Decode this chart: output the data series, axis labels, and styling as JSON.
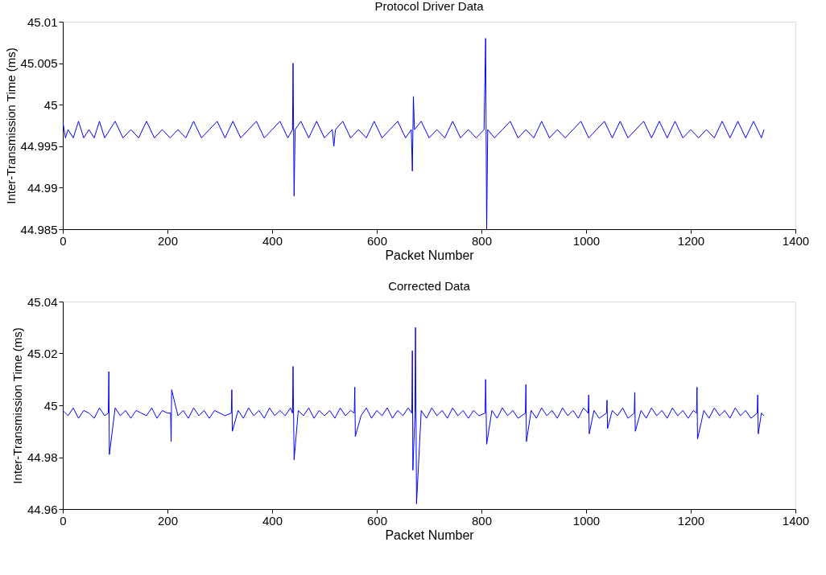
{
  "chart_data": [
    {
      "type": "line",
      "title": "Protocol Driver Data",
      "xlabel": "Packet Number",
      "ylabel": "Inter-Transmission Time (ms)",
      "xlim": [
        0,
        1400
      ],
      "xticks": [
        0,
        200,
        400,
        600,
        800,
        1000,
        1200,
        1400
      ],
      "ylim": [
        44.985,
        45.01
      ],
      "yticks": [
        44.985,
        44.99,
        44.995,
        45,
        45.005,
        45.01
      ],
      "x": [
        0,
        5,
        10,
        20,
        30,
        40,
        50,
        60,
        70,
        80,
        90,
        100,
        115,
        130,
        145,
        160,
        175,
        190,
        205,
        220,
        235,
        250,
        265,
        280,
        295,
        310,
        325,
        340,
        355,
        370,
        385,
        400,
        415,
        430,
        439,
        440,
        442,
        444,
        455,
        470,
        485,
        500,
        515,
        518,
        521,
        535,
        550,
        565,
        580,
        595,
        610,
        625,
        640,
        655,
        666,
        668,
        670,
        672,
        685,
        700,
        715,
        730,
        745,
        760,
        775,
        790,
        805,
        808,
        810,
        812,
        825,
        840,
        855,
        870,
        885,
        900,
        915,
        930,
        945,
        960,
        975,
        990,
        1005,
        1020,
        1035,
        1050,
        1065,
        1080,
        1095,
        1110,
        1125,
        1140,
        1155,
        1170,
        1185,
        1200,
        1215,
        1230,
        1245,
        1260,
        1275,
        1290,
        1305,
        1320,
        1335,
        1340
      ],
      "series": [
        {
          "color": "#0000ff",
          "values": [
            44.998,
            44.996,
            44.997,
            44.996,
            44.998,
            44.996,
            44.997,
            44.996,
            44.998,
            44.996,
            44.997,
            44.998,
            44.996,
            44.997,
            44.996,
            44.998,
            44.996,
            44.997,
            44.996,
            44.997,
            44.996,
            44.998,
            44.996,
            44.997,
            44.998,
            44.996,
            44.998,
            44.996,
            44.997,
            44.998,
            44.996,
            44.997,
            44.998,
            44.996,
            44.997,
            45.005,
            44.989,
            44.997,
            44.998,
            44.996,
            44.998,
            44.996,
            44.997,
            44.995,
            44.997,
            44.998,
            44.996,
            44.997,
            44.996,
            44.998,
            44.996,
            44.997,
            44.998,
            44.996,
            44.997,
            44.992,
            45.001,
            44.997,
            44.998,
            44.996,
            44.997,
            44.996,
            44.998,
            44.996,
            44.997,
            44.996,
            44.997,
            45.008,
            44.985,
            44.997,
            44.996,
            44.997,
            44.998,
            44.996,
            44.997,
            44.996,
            44.998,
            44.996,
            44.997,
            44.996,
            44.997,
            44.998,
            44.996,
            44.997,
            44.998,
            44.996,
            44.998,
            44.996,
            44.997,
            44.998,
            44.996,
            44.998,
            44.996,
            44.998,
            44.996,
            44.997,
            44.996,
            44.997,
            44.996,
            44.998,
            44.996,
            44.998,
            44.996,
            44.998,
            44.996,
            44.997
          ]
        }
      ]
    },
    {
      "type": "line",
      "title": "Corrected Data",
      "xlabel": "Packet Number",
      "ylabel": "Inter-Transmission Time (ms)",
      "xlim": [
        0,
        1400
      ],
      "xticks": [
        0,
        200,
        400,
        600,
        800,
        1000,
        1200,
        1400
      ],
      "ylim": [
        44.96,
        45.04
      ],
      "yticks": [
        44.96,
        44.98,
        45,
        45.02,
        45.04
      ],
      "x": [
        0,
        10,
        20,
        30,
        40,
        50,
        60,
        70,
        80,
        87,
        88,
        89,
        100,
        110,
        120,
        130,
        140,
        150,
        160,
        170,
        180,
        190,
        200,
        206,
        207,
        208,
        220,
        230,
        240,
        250,
        260,
        270,
        280,
        290,
        300,
        310,
        322,
        323,
        324,
        335,
        345,
        355,
        365,
        375,
        385,
        395,
        405,
        415,
        425,
        435,
        439,
        440,
        442,
        450,
        460,
        470,
        480,
        490,
        500,
        510,
        520,
        530,
        540,
        550,
        557,
        558,
        559,
        570,
        580,
        590,
        600,
        610,
        620,
        630,
        640,
        650,
        660,
        667,
        668,
        669,
        673,
        674,
        676,
        685,
        695,
        705,
        715,
        725,
        735,
        745,
        755,
        765,
        775,
        785,
        795,
        807,
        808,
        810,
        820,
        830,
        840,
        850,
        860,
        870,
        884,
        885,
        886,
        895,
        905,
        915,
        925,
        935,
        945,
        955,
        965,
        975,
        985,
        995,
        1004,
        1005,
        1006,
        1015,
        1025,
        1039,
        1040,
        1041,
        1050,
        1060,
        1070,
        1080,
        1092,
        1093,
        1094,
        1105,
        1115,
        1125,
        1135,
        1145,
        1155,
        1165,
        1175,
        1185,
        1195,
        1205,
        1211,
        1212,
        1213,
        1225,
        1235,
        1245,
        1255,
        1265,
        1275,
        1285,
        1295,
        1305,
        1315,
        1327,
        1328,
        1329,
        1335,
        1340
      ],
      "series": [
        {
          "color": "#0000ff",
          "values": [
            44.998,
            44.996,
            44.999,
            44.995,
            44.998,
            44.997,
            44.995,
            44.999,
            44.996,
            44.997,
            45.013,
            44.981,
            44.999,
            44.996,
            44.998,
            44.995,
            44.998,
            44.997,
            44.996,
            44.999,
            44.995,
            44.998,
            44.997,
            44.997,
            44.986,
            45.006,
            44.996,
            44.998,
            44.995,
            44.999,
            44.996,
            44.998,
            44.995,
            44.998,
            44.997,
            44.996,
            44.997,
            45.006,
            44.99,
            44.998,
            44.995,
            44.999,
            44.996,
            44.998,
            44.995,
            44.999,
            44.996,
            44.998,
            44.996,
            44.999,
            44.997,
            45.015,
            44.979,
            44.998,
            44.996,
            44.999,
            44.995,
            44.998,
            44.996,
            44.998,
            44.995,
            44.999,
            44.996,
            44.998,
            44.997,
            45.007,
            44.988,
            44.996,
            44.999,
            44.995,
            44.998,
            44.996,
            44.999,
            44.995,
            44.998,
            44.996,
            44.999,
            44.997,
            45.021,
            44.975,
            44.997,
            45.03,
            44.962,
            44.998,
            44.995,
            44.999,
            44.996,
            44.998,
            44.995,
            44.999,
            44.996,
            44.998,
            44.995,
            44.998,
            44.996,
            44.997,
            45.01,
            44.985,
            44.998,
            44.995,
            44.999,
            44.996,
            44.998,
            44.995,
            44.997,
            45.008,
            44.986,
            44.998,
            44.995,
            44.999,
            44.996,
            44.998,
            44.995,
            44.999,
            44.996,
            44.998,
            44.995,
            44.999,
            44.997,
            45.004,
            44.989,
            44.998,
            44.995,
            44.997,
            45.002,
            44.991,
            44.998,
            44.996,
            44.999,
            44.995,
            44.997,
            45.005,
            44.99,
            44.998,
            44.995,
            44.999,
            44.996,
            44.998,
            44.995,
            44.999,
            44.996,
            44.998,
            44.995,
            44.998,
            44.997,
            45.007,
            44.987,
            44.998,
            44.995,
            44.999,
            44.996,
            44.998,
            44.995,
            44.999,
            44.996,
            44.998,
            44.995,
            44.997,
            45.004,
            44.989,
            44.997,
            44.996
          ]
        }
      ]
    }
  ]
}
